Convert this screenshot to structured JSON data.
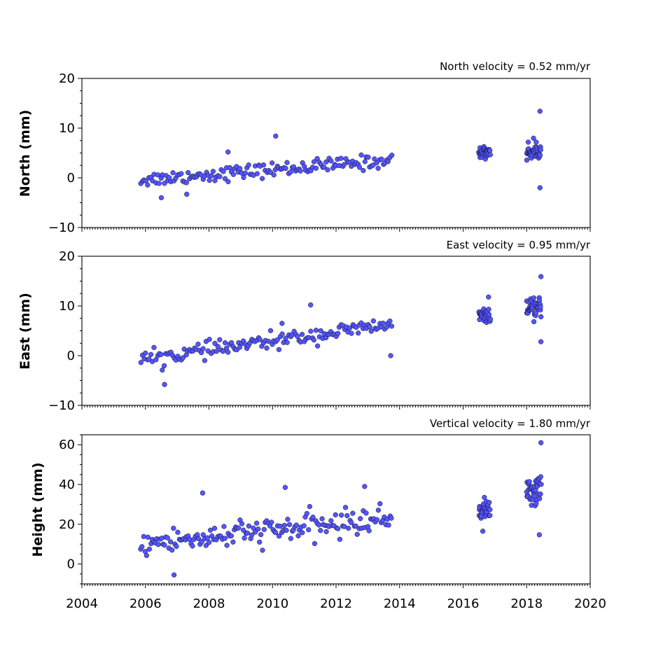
{
  "chart_data": [
    {
      "type": "scatter",
      "ylabel": "North (mm)",
      "annotation": "North velocity = 0.52 mm/yr",
      "xlim": [
        2004,
        2020
      ],
      "ylim": [
        -10,
        20
      ],
      "yticks": [
        -10,
        0,
        10,
        20
      ],
      "marker_color": "#5555ff",
      "segments": [
        {
          "x_start": 2005.85,
          "x_end": 2013.75,
          "y_start": -0.4,
          "y_end": 3.5,
          "spread": 1.2,
          "n": 150
        },
        {
          "x_start": 2016.5,
          "x_end": 2016.85,
          "y_start": 5.0,
          "y_end": 5.3,
          "spread": 1.0,
          "n": 30
        },
        {
          "x_start": 2018.0,
          "x_end": 2018.45,
          "y_start": 5.2,
          "y_end": 5.6,
          "spread": 1.5,
          "n": 40
        }
      ],
      "outliers": [
        {
          "x": 2010.1,
          "y": 8.4
        },
        {
          "x": 2018.42,
          "y": 13.4
        },
        {
          "x": 2018.42,
          "y": -2.0
        },
        {
          "x": 2006.5,
          "y": -4.0
        },
        {
          "x": 2008.6,
          "y": 5.2
        },
        {
          "x": 2007.3,
          "y": -3.3
        }
      ]
    },
    {
      "type": "scatter",
      "ylabel": "East (mm)",
      "annotation": "East velocity = 0.95 mm/yr",
      "xlim": [
        2004,
        2020
      ],
      "ylim": [
        -10,
        20
      ],
      "yticks": [
        -10,
        0,
        10,
        20
      ],
      "marker_color": "#5555ff",
      "segments": [
        {
          "x_start": 2005.85,
          "x_end": 2013.75,
          "y_start": -0.8,
          "y_end": 6.3,
          "spread": 1.3,
          "n": 150
        },
        {
          "x_start": 2016.5,
          "x_end": 2016.85,
          "y_start": 8.0,
          "y_end": 8.2,
          "spread": 1.0,
          "n": 30
        },
        {
          "x_start": 2018.0,
          "x_end": 2018.45,
          "y_start": 9.0,
          "y_end": 9.6,
          "spread": 1.6,
          "n": 40
        }
      ],
      "outliers": [
        {
          "x": 2006.6,
          "y": -5.8
        },
        {
          "x": 2011.2,
          "y": 10.2
        },
        {
          "x": 2018.45,
          "y": 15.9
        },
        {
          "x": 2018.45,
          "y": 2.8
        },
        {
          "x": 2013.72,
          "y": 0.0
        },
        {
          "x": 2016.8,
          "y": 11.8
        },
        {
          "x": 2010.3,
          "y": 6.5
        }
      ]
    },
    {
      "type": "scatter",
      "ylabel": "Height (mm)",
      "annotation": "Vertical velocity = 1.80 mm/yr",
      "xlim": [
        2004,
        2020
      ],
      "ylim": [
        -10,
        65
      ],
      "yticks": [
        0,
        20,
        40,
        60
      ],
      "marker_color": "#5555ff",
      "segments": [
        {
          "x_start": 2005.85,
          "x_end": 2013.75,
          "y_start": 10.0,
          "y_end": 23.0,
          "spread": 5.5,
          "n": 170
        },
        {
          "x_start": 2016.5,
          "x_end": 2016.85,
          "y_start": 27.0,
          "y_end": 28.0,
          "spread": 4.0,
          "n": 30
        },
        {
          "x_start": 2018.0,
          "x_end": 2018.45,
          "y_start": 35.0,
          "y_end": 38.0,
          "spread": 6.0,
          "n": 40
        }
      ],
      "outliers": [
        {
          "x": 2018.45,
          "y": 61.0
        },
        {
          "x": 2018.4,
          "y": 14.7
        },
        {
          "x": 2007.8,
          "y": 35.7
        },
        {
          "x": 2010.4,
          "y": 38.5
        },
        {
          "x": 2012.9,
          "y": 39.0
        },
        {
          "x": 2006.9,
          "y": -5.5
        },
        {
          "x": 2016.62,
          "y": 16.5
        }
      ]
    }
  ],
  "x_axis": {
    "tick_labels": [
      "2004",
      "2006",
      "2008",
      "2010",
      "2012",
      "2014",
      "2016",
      "2018",
      "2020"
    ]
  }
}
